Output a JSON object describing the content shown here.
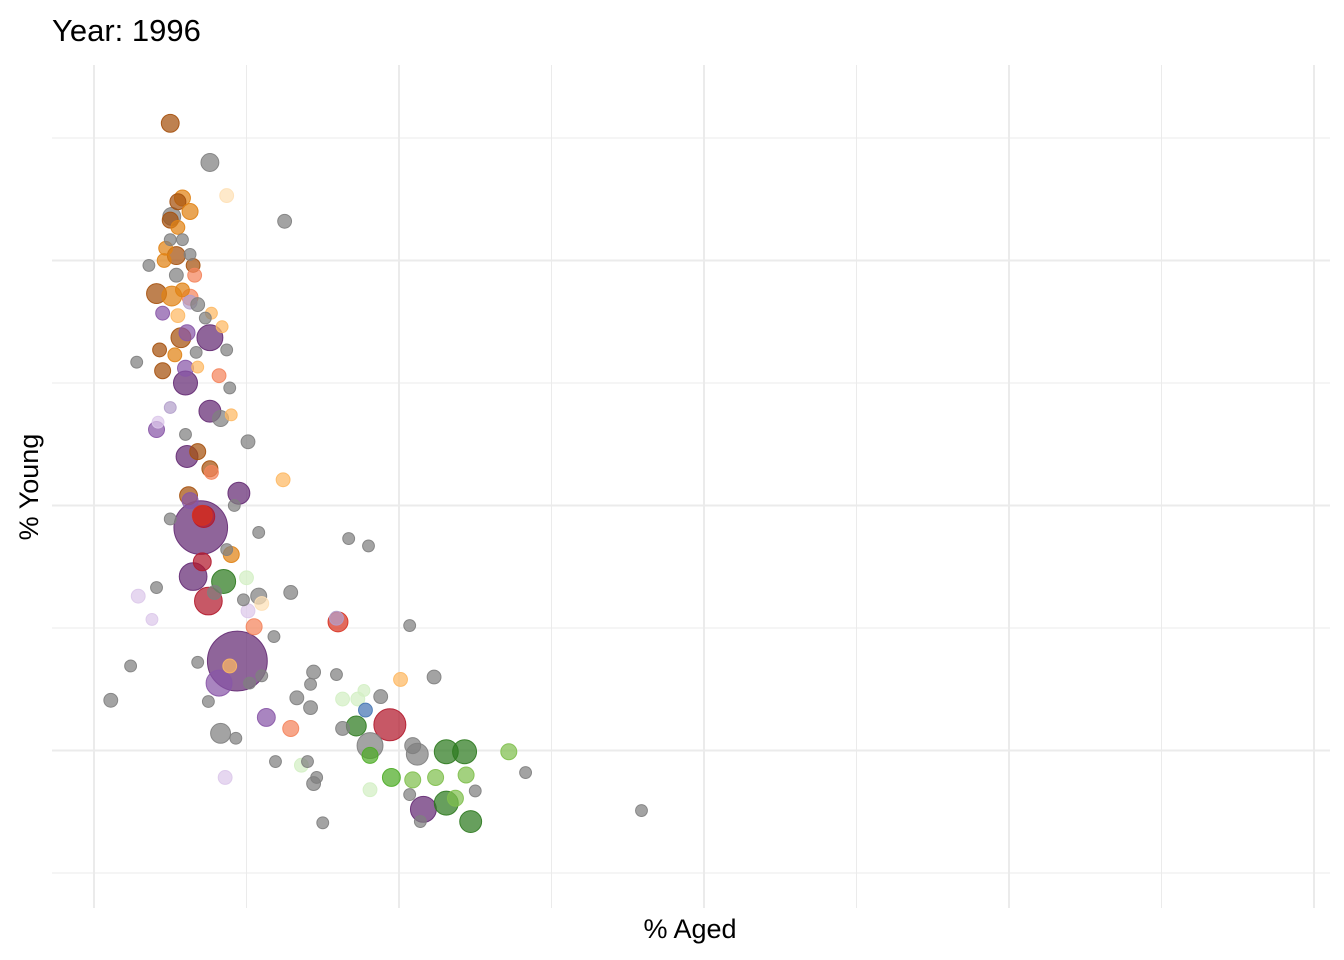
{
  "chart_data": {
    "type": "scatter",
    "title": "Year: 1996",
    "xlabel": "% Aged",
    "ylabel": "% Young",
    "xlim": [
      -0.28,
      8.1
    ],
    "ylim": [
      -0.28,
      6.6
    ],
    "grid": true,
    "x_tick_labels": [],
    "y_tick_labels": [],
    "legend": "none",
    "size_encoding": "population (relative)",
    "palette": {
      "g": "#7f7f7f",
      "o": "#e08214",
      "b": "#a5500c",
      "lo": "#fdb863",
      "p": "#fee0b6",
      "s": "#f4845c",
      "r": "#d7301f",
      "c": "#b2182b",
      "P": "#642a73",
      "m": "#8856a7",
      "l": "#b39fcb",
      "v": "#dcc8ea",
      "G": "#2d7a1f",
      "M": "#4dac26",
      "L": "#7fbf4d",
      "E": "#d3efc4",
      "B": "#4575b4"
    },
    "points": [
      [
        0.5,
        6.12,
        5,
        "b"
      ],
      [
        0.76,
        5.8,
        5,
        "g"
      ],
      [
        0.87,
        5.53,
        3,
        "p"
      ],
      [
        1.25,
        5.32,
        3,
        "g"
      ],
      [
        0.58,
        5.51,
        4,
        "o"
      ],
      [
        0.55,
        5.48,
        4,
        "b"
      ],
      [
        0.63,
        5.4,
        4,
        "o"
      ],
      [
        0.51,
        5.36,
        5,
        "g"
      ],
      [
        0.5,
        5.33,
        4,
        "b"
      ],
      [
        0.55,
        5.27,
        3,
        "o"
      ],
      [
        0.58,
        5.17,
        2.2,
        "g"
      ],
      [
        0.5,
        5.17,
        2.2,
        "g"
      ],
      [
        0.47,
        5.1,
        3,
        "o"
      ],
      [
        0.54,
        5.04,
        5,
        "b"
      ],
      [
        0.63,
        5.05,
        2.2,
        "g"
      ],
      [
        0.46,
        5.0,
        3,
        "o"
      ],
      [
        0.36,
        4.96,
        2.2,
        "g"
      ],
      [
        0.65,
        4.96,
        3,
        "b"
      ],
      [
        0.66,
        4.88,
        3,
        "s"
      ],
      [
        0.54,
        4.88,
        3,
        "g"
      ],
      [
        0.41,
        4.73,
        6.2,
        "b"
      ],
      [
        0.51,
        4.71,
        6.2,
        "o"
      ],
      [
        0.58,
        4.76,
        3,
        "o"
      ],
      [
        0.63,
        4.7,
        4,
        "s"
      ],
      [
        0.63,
        4.66,
        3,
        "l"
      ],
      [
        0.68,
        4.64,
        3,
        "g"
      ],
      [
        0.45,
        4.57,
        3,
        "m"
      ],
      [
        0.55,
        4.55,
        3,
        "lo"
      ],
      [
        0.77,
        4.57,
        2.2,
        "lo"
      ],
      [
        0.73,
        4.53,
        2.2,
        "g"
      ],
      [
        0.84,
        4.46,
        2.2,
        "lo"
      ],
      [
        0.76,
        4.37,
        10.5,
        "P"
      ],
      [
        0.57,
        4.37,
        6.2,
        "b"
      ],
      [
        0.61,
        4.41,
        4,
        "m"
      ],
      [
        0.67,
        4.25,
        2.2,
        "g"
      ],
      [
        0.87,
        4.27,
        2.2,
        "g"
      ],
      [
        0.28,
        4.17,
        2.2,
        "g"
      ],
      [
        0.43,
        4.27,
        3,
        "b"
      ],
      [
        0.53,
        4.23,
        3,
        "o"
      ],
      [
        0.68,
        4.13,
        2.2,
        "lo"
      ],
      [
        0.45,
        4.1,
        4,
        "b"
      ],
      [
        0.6,
        4.12,
        4,
        "m"
      ],
      [
        0.82,
        4.06,
        3,
        "s"
      ],
      [
        0.6,
        4.0,
        9,
        "P"
      ],
      [
        0.89,
        3.96,
        2.2,
        "g"
      ],
      [
        0.5,
        3.8,
        2.2,
        "l"
      ],
      [
        0.41,
        3.62,
        4,
        "m"
      ],
      [
        0.42,
        3.68,
        2.2,
        "v"
      ],
      [
        0.76,
        3.77,
        7.5,
        "P"
      ],
      [
        0.83,
        3.71,
        4,
        "g"
      ],
      [
        0.9,
        3.74,
        2.2,
        "lo"
      ],
      [
        0.6,
        3.58,
        2.2,
        "g"
      ],
      [
        0.68,
        3.44,
        4,
        "b"
      ],
      [
        0.61,
        3.4,
        7.5,
        "P"
      ],
      [
        0.76,
        3.3,
        4,
        "b"
      ],
      [
        0.77,
        3.27,
        3,
        "s"
      ],
      [
        1.01,
        3.52,
        3,
        "g"
      ],
      [
        1.24,
        3.21,
        3,
        "lo"
      ],
      [
        0.95,
        3.1,
        7.5,
        "P"
      ],
      [
        0.62,
        3.08,
        5,
        "b"
      ],
      [
        0.63,
        3.04,
        4,
        "m"
      ],
      [
        0.92,
        3.0,
        2.2,
        "g"
      ],
      [
        0.7,
        2.82,
        45,
        "P"
      ],
      [
        0.72,
        2.91,
        7.5,
        "c"
      ],
      [
        0.71,
        2.92,
        6.2,
        "r"
      ],
      [
        0.5,
        2.89,
        2.2,
        "g"
      ],
      [
        1.08,
        2.78,
        2.2,
        "g"
      ],
      [
        1.67,
        2.73,
        2.2,
        "g"
      ],
      [
        1.8,
        2.67,
        2.2,
        "g"
      ],
      [
        0.87,
        2.64,
        2.2,
        "g"
      ],
      [
        0.9,
        2.6,
        4,
        "o"
      ],
      [
        0.71,
        2.54,
        5,
        "c"
      ],
      [
        0.65,
        2.42,
        12,
        "P"
      ],
      [
        0.85,
        2.38,
        9,
        "G"
      ],
      [
        1.0,
        2.41,
        3,
        "E"
      ],
      [
        0.41,
        2.33,
        2.2,
        "g"
      ],
      [
        0.79,
        2.29,
        3,
        "g"
      ],
      [
        1.08,
        2.26,
        4,
        "g"
      ],
      [
        1.1,
        2.2,
        3,
        "p"
      ],
      [
        0.98,
        2.23,
        2.2,
        "g"
      ],
      [
        1.29,
        2.29,
        3,
        "g"
      ],
      [
        0.75,
        2.22,
        12,
        "c"
      ],
      [
        0.29,
        2.26,
        3,
        "v"
      ],
      [
        1.01,
        2.14,
        3,
        "v"
      ],
      [
        0.38,
        2.07,
        2.2,
        "v"
      ],
      [
        1.59,
        2.08,
        3,
        "l"
      ],
      [
        1.6,
        2.05,
        6.2,
        "r"
      ],
      [
        2.07,
        2.02,
        2.2,
        "g"
      ],
      [
        1.05,
        2.01,
        4,
        "s"
      ],
      [
        1.18,
        1.93,
        2.2,
        "g"
      ],
      [
        0.94,
        1.73,
        56,
        "P"
      ],
      [
        0.89,
        1.69,
        3,
        "lo"
      ],
      [
        0.82,
        1.55,
        10.5,
        "m"
      ],
      [
        0.68,
        1.72,
        2.2,
        "g"
      ],
      [
        0.24,
        1.69,
        2.2,
        "g"
      ],
      [
        0.11,
        1.41,
        3,
        "g"
      ],
      [
        0.75,
        1.4,
        2.2,
        "g"
      ],
      [
        1.02,
        1.55,
        2.2,
        "g"
      ],
      [
        1.1,
        1.61,
        2.2,
        "g"
      ],
      [
        1.44,
        1.64,
        3,
        "g"
      ],
      [
        1.59,
        1.62,
        2.2,
        "g"
      ],
      [
        1.42,
        1.54,
        2.2,
        "g"
      ],
      [
        1.33,
        1.43,
        3,
        "g"
      ],
      [
        1.42,
        1.35,
        3,
        "g"
      ],
      [
        2.01,
        1.58,
        3,
        "lo"
      ],
      [
        2.23,
        1.6,
        3,
        "g"
      ],
      [
        1.77,
        1.49,
        2.2,
        "E"
      ],
      [
        1.63,
        1.42,
        3,
        "E"
      ],
      [
        1.73,
        1.42,
        3,
        "E"
      ],
      [
        1.88,
        1.44,
        3,
        "g"
      ],
      [
        1.78,
        1.33,
        3,
        "B"
      ],
      [
        1.13,
        1.27,
        5,
        "m"
      ],
      [
        1.29,
        1.18,
        4,
        "s"
      ],
      [
        0.83,
        1.14,
        6.2,
        "g"
      ],
      [
        0.93,
        1.1,
        2.2,
        "g"
      ],
      [
        1.63,
        1.18,
        3,
        "g"
      ],
      [
        1.72,
        1.2,
        6.2,
        "G"
      ],
      [
        1.94,
        1.21,
        16,
        "c"
      ],
      [
        1.81,
        1.04,
        10.5,
        "g"
      ],
      [
        1.81,
        0.96,
        4,
        "M"
      ],
      [
        2.09,
        1.04,
        4,
        "g"
      ],
      [
        2.12,
        0.97,
        7.5,
        "g"
      ],
      [
        2.31,
        0.99,
        9,
        "G"
      ],
      [
        2.43,
        0.99,
        9,
        "G"
      ],
      [
        2.72,
        0.99,
        4,
        "L"
      ],
      [
        1.19,
        0.91,
        2.2,
        "g"
      ],
      [
        1.4,
        0.91,
        2.2,
        "g"
      ],
      [
        1.36,
        0.88,
        3,
        "E"
      ],
      [
        1.95,
        0.78,
        5,
        "M"
      ],
      [
        2.09,
        0.76,
        4,
        "L"
      ],
      [
        2.24,
        0.78,
        4,
        "L"
      ],
      [
        2.44,
        0.8,
        4,
        "L"
      ],
      [
        2.83,
        0.82,
        2.2,
        "g"
      ],
      [
        1.44,
        0.73,
        3,
        "g"
      ],
      [
        1.46,
        0.78,
        2.2,
        "g"
      ],
      [
        0.86,
        0.78,
        3,
        "v"
      ],
      [
        1.81,
        0.68,
        3,
        "E"
      ],
      [
        2.07,
        0.64,
        2.2,
        "g"
      ],
      [
        2.16,
        0.52,
        10.5,
        "P"
      ],
      [
        2.31,
        0.57,
        9,
        "G"
      ],
      [
        2.37,
        0.61,
        4,
        "L"
      ],
      [
        2.5,
        0.67,
        2.2,
        "g"
      ],
      [
        2.47,
        0.42,
        7.5,
        "G"
      ],
      [
        2.14,
        0.42,
        2.2,
        "g"
      ],
      [
        1.5,
        0.41,
        2.2,
        "g"
      ],
      [
        3.59,
        0.51,
        2.2,
        "g"
      ]
    ]
  }
}
